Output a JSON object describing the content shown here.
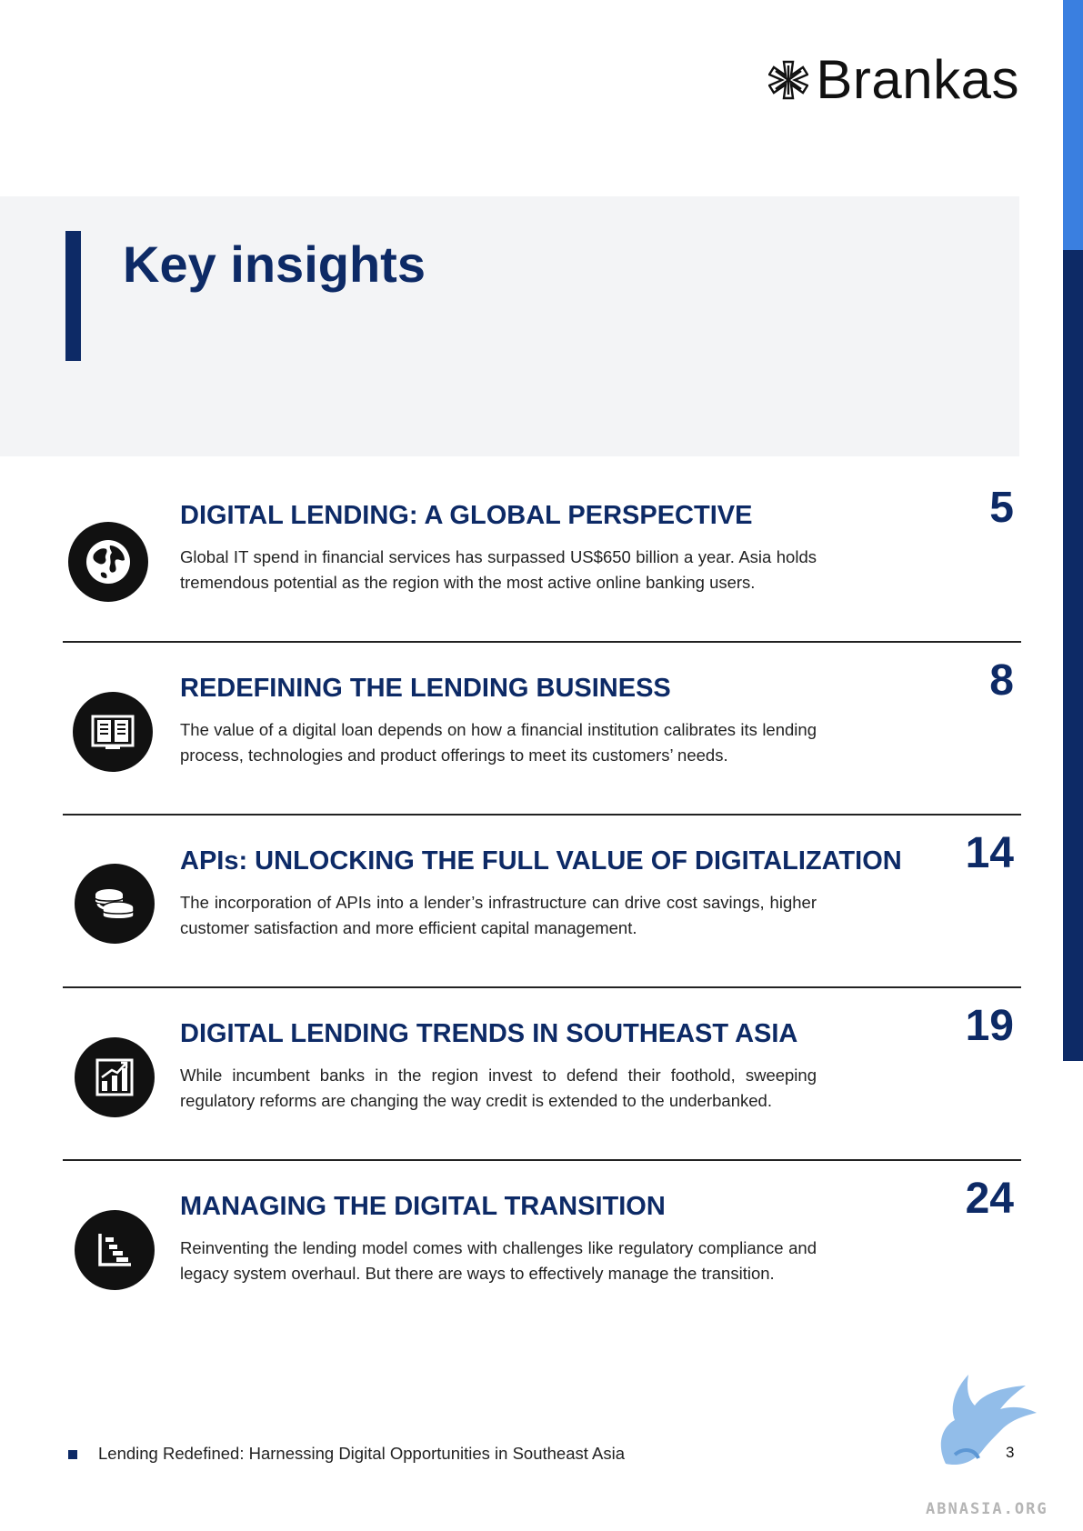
{
  "brand": {
    "name": "Brankas",
    "icon": "asterisk-star-icon"
  },
  "hero": {
    "title": "Key insights"
  },
  "items": [
    {
      "icon": "globe-icon",
      "title": "DIGITAL LENDING: A GLOBAL PERSPECTIVE",
      "text": "Global IT spend in financial services has surpassed US$650 billion a year. Asia holds tremendous potential as the region with the most active online banking users.",
      "page": "5"
    },
    {
      "icon": "book-monitor-icon",
      "title": "REDEFINING THE LENDING BUSINESS",
      "text": "The value of a digital loan depends on how a financial institution calibrates its lending process, technologies and product offerings to meet its customers’ needs.",
      "page": "8"
    },
    {
      "icon": "coins-icon",
      "title": "APIs: UNLOCKING THE FULL VALUE OF DIGITALIZATION",
      "text": "The incorporation of APIs into a lender’s infrastructure can drive cost savings, higher customer satisfaction and more efficient capital management.",
      "page": "14"
    },
    {
      "icon": "bar-chart-growth-icon",
      "title": "DIGITAL LENDING TRENDS IN SOUTHEAST ASIA",
      "text": "While incumbent banks in the region invest to defend their foothold, sweeping regulatory reforms are changing the way credit is extended to the underbanked.",
      "page": "19"
    },
    {
      "icon": "descending-chart-icon",
      "title": "MANAGING THE DIGITAL TRANSITION",
      "text": "Reinventing the lending model comes with challenges like regulatory compliance and legacy system overhaul. But there are ways to effectively manage the transition.",
      "page": "24"
    }
  ],
  "footer": {
    "title": "Lending Redefined: Harnessing Digital Opportunities in Southeast Asia",
    "page_number": "3"
  },
  "watermark": {
    "text": "ABNASIA.ORG",
    "icon": "griffin-logo-icon"
  },
  "colors": {
    "navy": "#0d2a66",
    "accent_blue": "#3a7fe0",
    "hero_bg": "#f3f4f6"
  }
}
